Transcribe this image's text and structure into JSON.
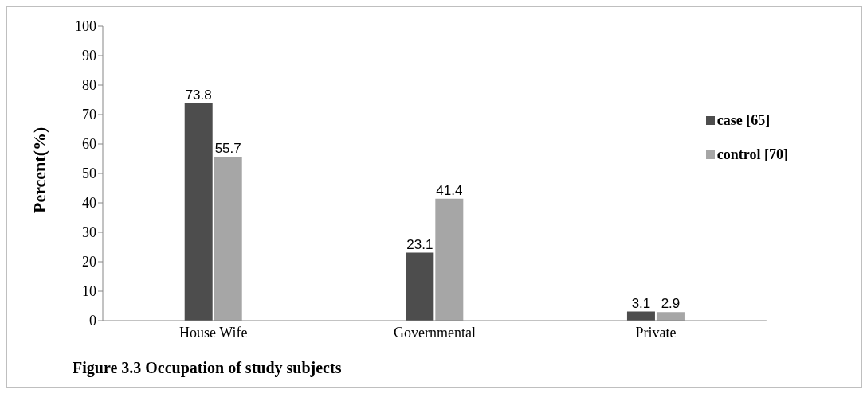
{
  "chart_data": {
    "type": "bar",
    "title": "Figure 3.3 Occupation of study subjects",
    "ylabel": "Percent(%)",
    "categories": [
      "House Wife",
      "Governmental",
      "Private"
    ],
    "series": [
      {
        "name": "case [65]",
        "color": "#4d4d4d",
        "values": [
          73.8,
          23.1,
          3.1
        ]
      },
      {
        "name": "control [70]",
        "color": "#a6a6a6",
        "values": [
          55.7,
          41.4,
          2.9
        ]
      }
    ],
    "ylim": [
      0,
      100
    ],
    "yticks": [
      0,
      10,
      20,
      30,
      40,
      50,
      60,
      70,
      80,
      90,
      100
    ],
    "data_labels": true,
    "grid": false,
    "legend": "right"
  }
}
